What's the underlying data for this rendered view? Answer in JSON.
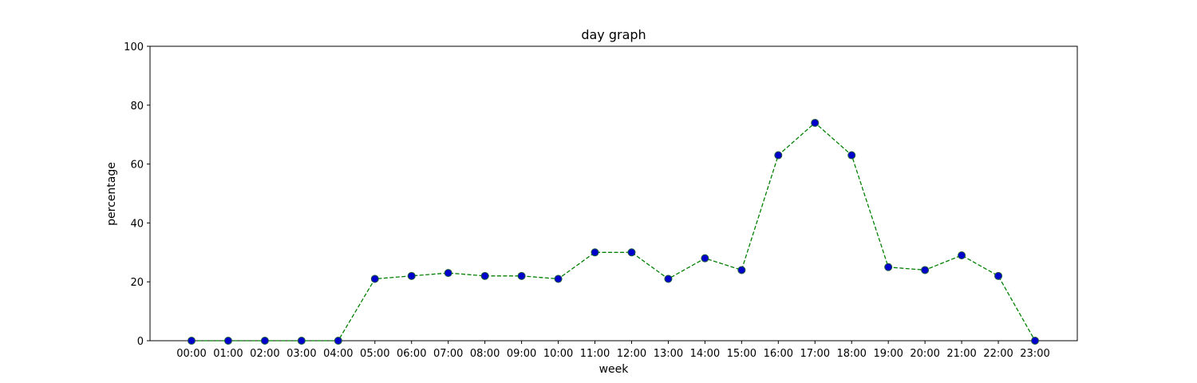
{
  "chart_data": {
    "type": "line",
    "title": "day graph",
    "xlabel": "week",
    "ylabel": "percentage",
    "ylim": [
      0,
      100
    ],
    "yticks": [
      0,
      20,
      40,
      60,
      80,
      100
    ],
    "grid": false,
    "categories": [
      "00:00",
      "01:00",
      "02:00",
      "03:00",
      "04:00",
      "05:00",
      "06:00",
      "07:00",
      "08:00",
      "09:00",
      "10:00",
      "11:00",
      "12:00",
      "13:00",
      "14:00",
      "15:00",
      "16:00",
      "17:00",
      "18:00",
      "19:00",
      "20:00",
      "21:00",
      "22:00",
      "23:00"
    ],
    "series": [
      {
        "values": [
          0,
          0,
          0,
          0,
          0,
          21,
          22,
          23,
          22,
          22,
          21,
          30,
          30,
          21,
          28,
          24,
          63,
          74,
          63,
          25,
          24,
          29,
          22,
          0
        ],
        "line_color": "#008000",
        "line_style": "dashed",
        "marker_fill": "#0000cc",
        "marker_edge": "#1f5f3f"
      }
    ]
  }
}
